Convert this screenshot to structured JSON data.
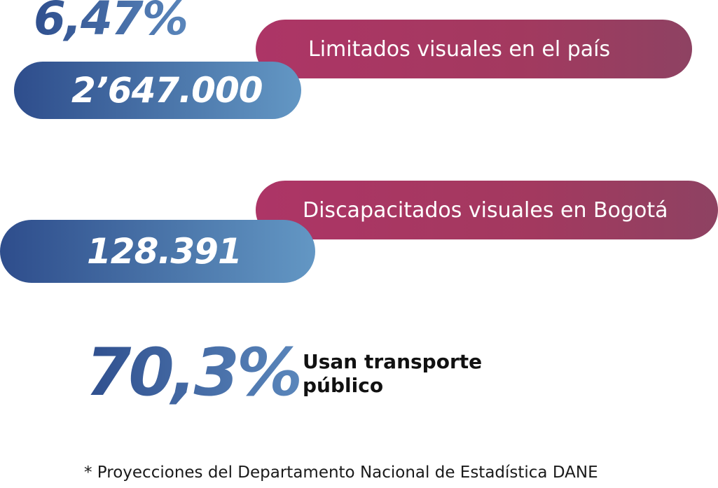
{
  "stats": {
    "national_percent": "6,47%",
    "national_count": "2’647.000",
    "national_label": "Limitados visuales en el país",
    "bogota_label": "Discapacitados visuales en Bogotá",
    "bogota_count": "128.391",
    "transport_percent": "70,3%",
    "transport_label": "Usan transporte público"
  },
  "footnote": "* Proyecciones del Departamento Nacional de Estadística DANE",
  "colors": {
    "blue_start": "#2e4d8c",
    "blue_end": "#6397c4",
    "magenta_start": "#ad3566",
    "magenta_end": "#8e4262",
    "text_dark": "#111111"
  }
}
